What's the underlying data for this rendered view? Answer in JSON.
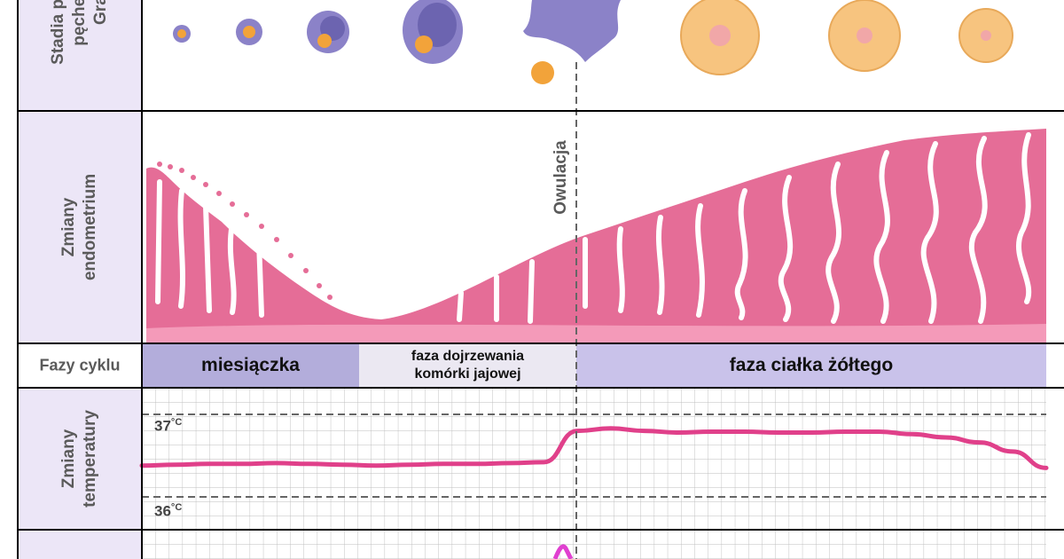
{
  "rows": {
    "follicle": {
      "label_line1": "Stadia przemian",
      "label_line2": "pęcherzyka",
      "label_line3": "Graffa"
    },
    "endometrium": {
      "label_line1": "Zmiany",
      "label_line2": "endometrium"
    },
    "phases": {
      "label": "Fazy cyklu"
    },
    "temperature": {
      "label_line1": "Zmiany",
      "label_line2": "temperatury"
    }
  },
  "phases": [
    {
      "name": "miesiączka",
      "color": "#b3addb"
    },
    {
      "name": "faza dojrzewania\nkomórki jajowej",
      "color": "#ebe8f2"
    },
    {
      "name": "faza ciałka żółtego",
      "color": "#c9c2ea"
    }
  ],
  "ovulation_label": "Owulacja",
  "temperature_labels": {
    "high": "37°C",
    "low": "36°C",
    "high_num": "37",
    "low_num": "36",
    "unit": "°C"
  },
  "colors": {
    "label_bg": "#ece6f7",
    "endometrium": "#e56d97",
    "endometrium_light": "#f49ab9",
    "temperature_line": "#e0408a",
    "follicle_outer": "#8b82c8",
    "follicle_inner": "#6c64b0",
    "oocyte": "#f2a33a",
    "corpus_luteum": "#f7c47f",
    "grid": "#bdbdbd"
  },
  "temperature_curve": {
    "days": [
      1,
      2,
      3,
      4,
      5,
      6,
      7,
      8,
      9,
      10,
      11,
      12,
      13,
      14,
      15,
      16,
      17,
      18,
      19,
      20,
      21,
      22,
      23,
      24,
      25,
      26,
      27,
      28
    ],
    "values": [
      36.38,
      36.39,
      36.4,
      36.4,
      36.41,
      36.4,
      36.39,
      36.38,
      36.39,
      36.4,
      36.4,
      36.41,
      36.42,
      36.8,
      36.83,
      36.8,
      36.78,
      36.79,
      36.79,
      36.78,
      36.78,
      36.79,
      36.79,
      36.76,
      36.72,
      36.66,
      36.55,
      36.35
    ]
  }
}
